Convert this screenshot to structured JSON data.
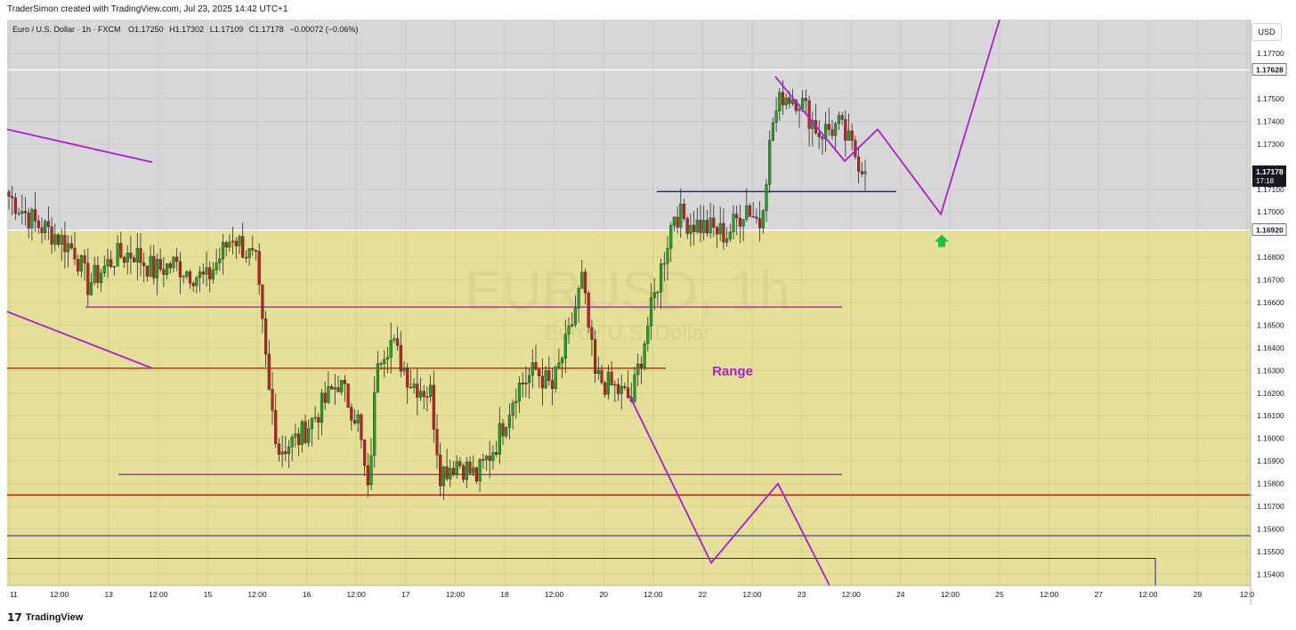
{
  "header": {
    "author_line": "TraderSimon created with TradingView.com, Jul 23, 2025 14:42 UTC+1"
  },
  "symbol_bar": {
    "name": "Euro / U.S. Dollar · 1h · FXCM",
    "open_label": "O",
    "open": "1.17250",
    "high_label": "H",
    "high": "1.17302",
    "low_label": "L",
    "low": "1.17109",
    "close_label": "C",
    "close": "1.17178",
    "change": "−0.00072 (−0.06%)"
  },
  "watermark": {
    "ticker": "EURUSD, 1h",
    "description": "Euro / U.S. Dollar"
  },
  "currency_button": "USD",
  "footer": {
    "brand": "TradingView"
  },
  "colors": {
    "background_zone": "#d7d7d7",
    "range_zone": "#e4e097",
    "bull_candle": "#1ea51e",
    "bear_candle": "#c41f1f",
    "projection_line": "#b01cd7",
    "support_line_red": "#d91a1a",
    "blue_line": "#1a1aa8",
    "arrow_green": "#19c04a",
    "range_label": "#b01cd7"
  },
  "chart_data": {
    "type": "candlestick",
    "symbol": "EURUSD",
    "timeframe": "1h",
    "ylim": [
      1.1535,
      1.1785
    ],
    "y_ticks": [
      "1.17700",
      "1.17500",
      "1.17400",
      "1.17300",
      "1.17100",
      "1.17000",
      "1.16800",
      "1.16700",
      "1.16600",
      "1.16500",
      "1.16400",
      "1.16300",
      "1.16200",
      "1.16100",
      "1.16000",
      "1.15900",
      "1.15800",
      "1.15700",
      "1.15600",
      "1.15500",
      "1.15400"
    ],
    "x_ticks": [
      "11",
      "12:00",
      "13",
      "12:00",
      "15",
      "12:00",
      "16",
      "12:00",
      "17",
      "12:00",
      "18",
      "12:00",
      "20",
      "12:00",
      "22",
      "12:00",
      "23",
      "12:00",
      "24",
      "12:00",
      "25",
      "12:00",
      "27",
      "12:00",
      "29",
      "12:0"
    ],
    "price_labels": [
      {
        "text": "1.17628",
        "price": 1.17628,
        "style": "white"
      },
      {
        "text": "1.17178",
        "sub": "17:18",
        "price": 1.17178,
        "style": "dark"
      },
      {
        "text": "1.16920",
        "price": 1.1692,
        "style": "white"
      }
    ],
    "anchors": [
      {
        "t": 0,
        "p": 1.1707
      },
      {
        "t": 8,
        "p": 1.1695
      },
      {
        "t": 14,
        "p": 1.169
      },
      {
        "t": 20,
        "p": 1.1683
      },
      {
        "t": 24,
        "p": 1.1668
      },
      {
        "t": 32,
        "p": 1.168
      },
      {
        "t": 38,
        "p": 1.1682
      },
      {
        "t": 44,
        "p": 1.1674
      },
      {
        "t": 50,
        "p": 1.1677
      },
      {
        "t": 60,
        "p": 1.167
      },
      {
        "t": 68,
        "p": 1.169
      },
      {
        "t": 75,
        "p": 1.1677
      },
      {
        "t": 79,
        "p": 1.162
      },
      {
        "t": 82,
        "p": 1.1595
      },
      {
        "t": 88,
        "p": 1.16
      },
      {
        "t": 94,
        "p": 1.1612
      },
      {
        "t": 100,
        "p": 1.1625
      },
      {
        "t": 106,
        "p": 1.1608
      },
      {
        "t": 109,
        "p": 1.1575
      },
      {
        "t": 112,
        "p": 1.1637
      },
      {
        "t": 116,
        "p": 1.1643
      },
      {
        "t": 122,
        "p": 1.1625
      },
      {
        "t": 128,
        "p": 1.162
      },
      {
        "t": 131,
        "p": 1.1585
      },
      {
        "t": 136,
        "p": 1.159
      },
      {
        "t": 142,
        "p": 1.1583
      },
      {
        "t": 148,
        "p": 1.1598
      },
      {
        "t": 154,
        "p": 1.1622
      },
      {
        "t": 160,
        "p": 1.163
      },
      {
        "t": 165,
        "p": 1.1622
      },
      {
        "t": 170,
        "p": 1.1645
      },
      {
        "t": 174,
        "p": 1.167
      },
      {
        "t": 178,
        "p": 1.1627
      },
      {
        "t": 184,
        "p": 1.1622
      },
      {
        "t": 189,
        "p": 1.1617
      },
      {
        "t": 194,
        "p": 1.165
      },
      {
        "t": 198,
        "p": 1.1675
      },
      {
        "t": 202,
        "p": 1.17
      },
      {
        "t": 206,
        "p": 1.1696
      },
      {
        "t": 212,
        "p": 1.1693
      },
      {
        "t": 218,
        "p": 1.169
      },
      {
        "t": 224,
        "p": 1.1703
      },
      {
        "t": 228,
        "p": 1.1695
      },
      {
        "t": 232,
        "p": 1.174
      },
      {
        "t": 235,
        "p": 1.1752
      },
      {
        "t": 240,
        "p": 1.175
      },
      {
        "t": 246,
        "p": 1.1735
      },
      {
        "t": 252,
        "p": 1.1738
      },
      {
        "t": 256,
        "p": 1.1728
      },
      {
        "t": 260,
        "p": 1.17178
      }
    ],
    "annotations": {
      "range_label": "Range",
      "zones": [
        {
          "name": "range-zone",
          "from": 1.1692,
          "to": 1.1535
        },
        {
          "name": "upper-gray-zone",
          "from": 1.1785,
          "to": 1.1692
        }
      ]
    }
  }
}
